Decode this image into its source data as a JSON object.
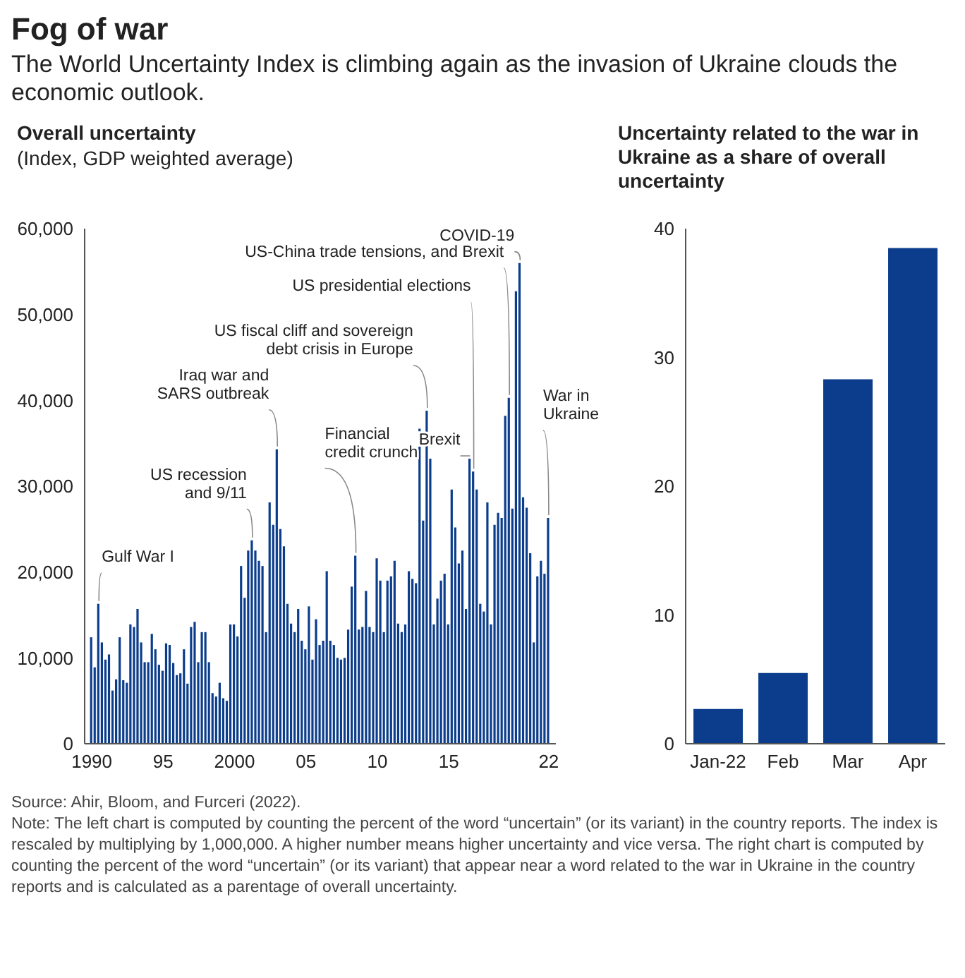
{
  "chart_data": [
    {
      "type": "other",
      "title": "Fog of war",
      "subtitle": "The World Uncertainty Index is climbing again as the invasion of Ukraine clouds the economic outlook."
    },
    {
      "type": "bar",
      "title": "Overall uncertainty",
      "subtitle": "(Index, GDP weighted average)",
      "color": "#0b3d8c",
      "x": [
        1990,
        1990.25,
        1990.5,
        1990.75,
        1991,
        1991.25,
        1991.5,
        1991.75,
        1992,
        1992.25,
        1992.5,
        1992.75,
        1993,
        1993.25,
        1993.5,
        1993.75,
        1994,
        1994.25,
        1994.5,
        1994.75,
        1995,
        1995.25,
        1995.5,
        1995.75,
        1996,
        1996.25,
        1996.5,
        1996.75,
        1997,
        1997.25,
        1997.5,
        1997.75,
        1998,
        1998.25,
        1998.5,
        1998.75,
        1999,
        1999.25,
        1999.5,
        1999.75,
        2000,
        2000.25,
        2000.5,
        2000.75,
        2001,
        2001.25,
        2001.5,
        2001.75,
        2002,
        2002.25,
        2002.5,
        2002.75,
        2003,
        2003.25,
        2003.5,
        2003.75,
        2004,
        2004.25,
        2004.5,
        2004.75,
        2005,
        2005.25,
        2005.5,
        2005.75,
        2006,
        2006.25,
        2006.5,
        2006.75,
        2007,
        2007.25,
        2007.5,
        2007.75,
        2008,
        2008.25,
        2008.5,
        2008.75,
        2009,
        2009.25,
        2009.5,
        2009.75,
        2010,
        2010.25,
        2010.5,
        2010.75,
        2011,
        2011.25,
        2011.5,
        2011.75,
        2012,
        2012.25,
        2012.5,
        2012.75,
        2013,
        2013.25,
        2013.5,
        2013.75,
        2014,
        2014.25,
        2014.5,
        2014.75,
        2015,
        2015.25,
        2015.5,
        2015.75,
        2016,
        2016.25,
        2016.5,
        2016.75,
        2017,
        2017.25,
        2017.5,
        2017.75,
        2018,
        2018.25,
        2018.5,
        2018.75,
        2019,
        2019.25,
        2019.5,
        2019.75,
        2020,
        2020.25,
        2020.5,
        2020.75,
        2021,
        2021.25,
        2021.5,
        2021.75,
        2022
      ],
      "values": [
        12400,
        8900,
        16300,
        11800,
        9800,
        10400,
        6200,
        7500,
        12400,
        7400,
        7100,
        13900,
        13600,
        15700,
        11800,
        9500,
        9500,
        12800,
        11000,
        9200,
        8500,
        11700,
        11500,
        9400,
        8000,
        8200,
        11000,
        7000,
        13600,
        14200,
        9500,
        13000,
        13000,
        9500,
        5900,
        5500,
        7100,
        5300,
        5000,
        13900,
        13900,
        12500,
        20700,
        17000,
        22500,
        23700,
        22500,
        21300,
        20700,
        13000,
        28100,
        25500,
        34300,
        25000,
        23000,
        16300,
        14000,
        13000,
        15700,
        12000,
        11000,
        16000,
        9800,
        14500,
        11500,
        12000,
        20100,
        12000,
        11500,
        10000,
        9800,
        10000,
        13300,
        18300,
        21900,
        13300,
        13600,
        17800,
        13600,
        13000,
        21600,
        19000,
        13000,
        19000,
        19500,
        21300,
        14000,
        13000,
        13900,
        20100,
        19200,
        18700,
        36700,
        26000,
        38800,
        33200,
        13900,
        16900,
        19000,
        19800,
        13900,
        29600,
        25200,
        21000,
        22500,
        15700,
        33200,
        31700,
        29600,
        16300,
        15400,
        28100,
        13900,
        25500,
        26900,
        26300,
        38200,
        40300,
        27400,
        52700,
        56000,
        28700,
        27500,
        22200,
        11800,
        19500,
        21300,
        19800,
        26300
      ],
      "xlim": [
        1989.5,
        2022.5
      ],
      "xticks": [
        1990,
        {
          "value": 1995,
          "label": "95"
        },
        2000,
        {
          "value": 2005,
          "label": "05"
        },
        {
          "value": 2010,
          "label": "10"
        },
        {
          "value": 2015,
          "label": "15"
        },
        {
          "value": 2022,
          "label": "22"
        }
      ],
      "ylim": [
        0,
        60000
      ],
      "yticks": [
        0,
        {
          "value": 10000,
          "label": "10,000"
        },
        {
          "value": 20000,
          "label": "20,000"
        },
        {
          "value": 30000,
          "label": "30,000"
        },
        {
          "value": 40000,
          "label": "40,000"
        },
        {
          "value": 50000,
          "label": "50,000"
        },
        {
          "value": 60000,
          "label": "60,000"
        }
      ],
      "annotations": [
        {
          "text": "Gulf War I",
          "x": 1990.5,
          "y": 16300
        },
        {
          "text": "US recession\nand 9/11",
          "x": 2001.25,
          "y": 23700
        },
        {
          "text": "Iraq war and\nSARS outbreak",
          "x": 2003,
          "y": 34300
        },
        {
          "text": "Financial\ncredit crunch",
          "x": 2008.5,
          "y": 21900
        },
        {
          "text": "US fiscal cliff and sovereign\ndebt crisis in Europe",
          "x": 2013.5,
          "y": 38800
        },
        {
          "text": "US presidential elections",
          "x": 2016.75,
          "y": 31700
        },
        {
          "text": "US-China trade tensions, and Brexit",
          "x": 2019.25,
          "y": 40300
        },
        {
          "text": "Brexit",
          "x": 2016.5,
          "y": 33200
        },
        {
          "text": "COVID-19",
          "x": 2020,
          "y": 56000
        },
        {
          "text": "War in\nUkraine",
          "x": 2022,
          "y": 26300
        }
      ]
    },
    {
      "type": "bar",
      "title": "Uncertainty related to the war in Ukraine as a share of overall uncertainty",
      "color": "#0b3d8c",
      "categories": [
        "Jan-22",
        "Feb",
        "Mar",
        "Apr"
      ],
      "values": [
        2.7,
        5.5,
        28.3,
        38.5
      ],
      "ylim": [
        0,
        40
      ],
      "yticks": [
        0,
        10,
        20,
        30,
        40
      ]
    },
    {
      "type": "other",
      "annotations": [
        "Source: Ahir, Bloom, and Furceri (2022).",
        "Note: The left chart is computed by counting the percent of the word “uncertain” (or its variant) in the country reports. The index is rescaled by multiplying by 1,000,000. A higher number means higher uncertainty and vice versa. The right chart is computed by counting the percent of the word “uncertain” (or its variant) that appear near a word related to the war in Ukraine in the country reports and is calculated as a parentage of overall uncertainty."
      ]
    }
  ]
}
